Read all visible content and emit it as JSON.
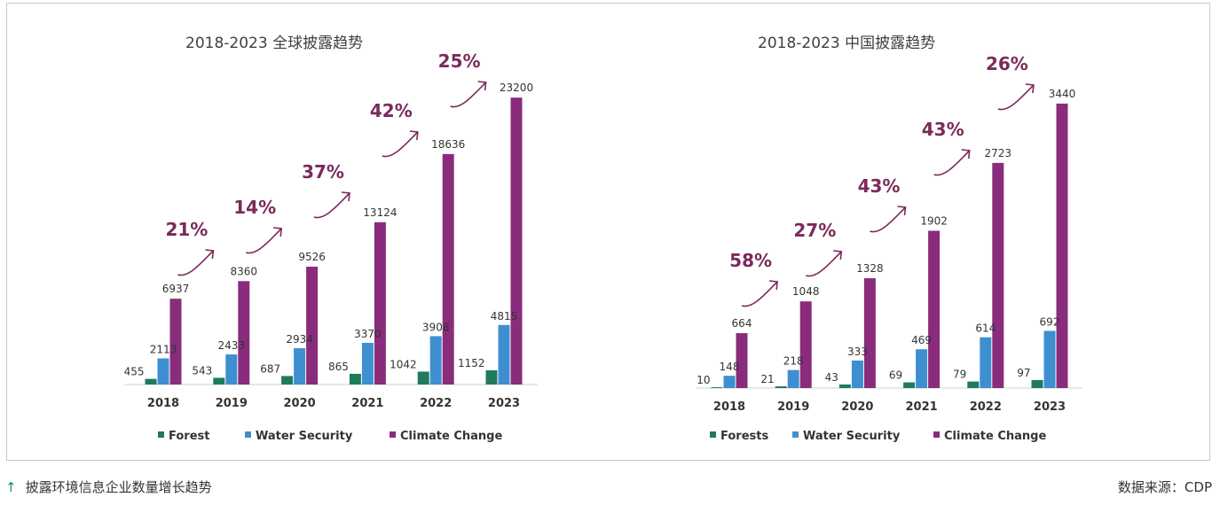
{
  "chart_data": [
    {
      "type": "bar",
      "title": "2018-2023 全球披露趋势",
      "categories": [
        "2018",
        "2019",
        "2020",
        "2021",
        "2022",
        "2023"
      ],
      "series": [
        {
          "name": "Forest",
          "color": "#1e7b5e",
          "values": [
            455,
            543,
            687,
            865,
            1042,
            1152
          ]
        },
        {
          "name": "Water Security",
          "color": "#3e8fd0",
          "values": [
            2113,
            2433,
            2934,
            3370,
            3908,
            4815
          ]
        },
        {
          "name": "Climate Change",
          "color": "#8a2c7c",
          "values": [
            6937,
            8360,
            9526,
            13124,
            18636,
            23200
          ]
        }
      ],
      "value_labels": {
        "Forest": [
          "455",
          "543",
          "687",
          "865",
          "1042",
          "1152"
        ],
        "Water Security": [
          "2113",
          "2433",
          "2934",
          "3370",
          "3908",
          "4815"
        ],
        "Climate Change": [
          "6937",
          "8360",
          "9526",
          "13124",
          "18636",
          "23200"
        ]
      },
      "growth_annotations": [
        "21%",
        "14%",
        "37%",
        "42%",
        "25%"
      ],
      "ylim": [
        0,
        24000
      ],
      "grid": false,
      "legend_position": "bottom"
    },
    {
      "type": "bar",
      "title": "2018-2023 中国披露趋势",
      "categories": [
        "2018",
        "2019",
        "2020",
        "2021",
        "2022",
        "2023"
      ],
      "series": [
        {
          "name": "Forests",
          "color": "#1e7b5e",
          "values": [
            10,
            21,
            43,
            69,
            79,
            97
          ]
        },
        {
          "name": "Water Security",
          "color": "#3e8fd0",
          "values": [
            148,
            218,
            333,
            469,
            614,
            692
          ]
        },
        {
          "name": "Climate Change",
          "color": "#8a2c7c",
          "values": [
            664,
            1048,
            1328,
            1902,
            2723,
            3440
          ]
        }
      ],
      "value_labels": {
        "Forests": [
          "10",
          "21",
          "43",
          "69",
          "79",
          "97"
        ],
        "Water Security": [
          "148",
          "218",
          "333",
          "469",
          "614",
          "692"
        ],
        "Climate Change": [
          "664",
          "1048",
          "1328",
          "1902",
          "2723",
          "3440"
        ]
      },
      "growth_annotations": [
        "58%",
        "27%",
        "43%",
        "43%",
        "26%"
      ],
      "ylim": [
        0,
        3600
      ],
      "grid": false,
      "legend_position": "bottom"
    }
  ],
  "caption": {
    "arrow": "↑",
    "text": "披露环境信息企业数量增长趋势"
  },
  "source": "数据来源：CDP",
  "colors": {
    "forest": "#1e7b5e",
    "water": "#3e8fd0",
    "climate": "#8a2c7c",
    "annotation": "#7a2a5c"
  }
}
